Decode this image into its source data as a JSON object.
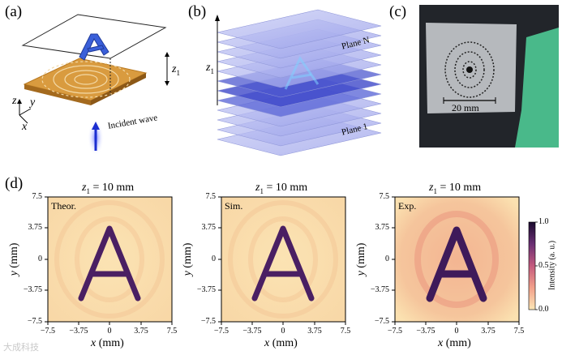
{
  "panels": {
    "a": {
      "label": "(a)",
      "z_axis": "z",
      "y_axis": "y",
      "x_axis": "x",
      "distance": "z",
      "distance_sub": "1",
      "letter": "A",
      "caption": "Incident wave"
    },
    "b": {
      "label": "(b)",
      "axis": "z",
      "axis_sub": "1",
      "plane_top": "Plane N",
      "plane_bottom": "Plane 1"
    },
    "c": {
      "label": "(c)",
      "scale": "20 mm"
    },
    "d": {
      "label": "(d)"
    }
  },
  "maps": [
    {
      "title_var": "z",
      "title_sub": "1",
      "title_rest": " = 10 mm",
      "tag": "Theor."
    },
    {
      "title_var": "z",
      "title_sub": "1",
      "title_rest": " = 10 mm",
      "tag": "Sim."
    },
    {
      "title_var": "z",
      "title_sub": "1",
      "title_rest": " = 10 mm",
      "tag": "Exp."
    }
  ],
  "axes": {
    "xlabel_var": "x",
    "xlabel_unit": " (mm)",
    "ylabel_var": "y",
    "ylabel_unit": " (mm)",
    "xticks": [
      "−7.5",
      "−3.75",
      "0",
      "3.75",
      "7.5"
    ],
    "yticks": [
      "7.5",
      "3.75",
      "0",
      "−3.75",
      "−7.5"
    ]
  },
  "colorbar": {
    "ticks": [
      "1.0",
      "0.5",
      "0.0"
    ],
    "label": "Intensity (a. u.)",
    "colors": [
      "#1a0a2e",
      "#6a2f73",
      "#c45a7e",
      "#f2a08a",
      "#fce7b6"
    ]
  },
  "watermark": "大成科技"
}
